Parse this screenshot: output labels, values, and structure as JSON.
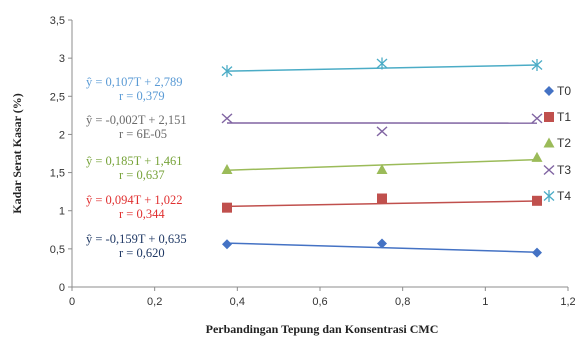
{
  "chart_data": {
    "type": "scatter",
    "title": "",
    "xlabel": "Perbandingan Tepung dan Konsentrasi CMC",
    "ylabel": "Kadar Serat Kasar (%)",
    "xlim": [
      0,
      1.2
    ],
    "ylim": [
      0,
      3.5
    ],
    "x_ticks": [
      "0",
      "0,2",
      "0,4",
      "0,6",
      "0,8",
      "1",
      "1,2"
    ],
    "y_ticks": [
      "0",
      "0,5",
      "1",
      "1,5",
      "2",
      "2,5",
      "3",
      "3,5"
    ],
    "grid": false,
    "legend_position": "right",
    "series": [
      {
        "name": "T0",
        "marker": "diamond",
        "color": "#4472C4",
        "x": [
          0.375,
          0.75,
          1.125
        ],
        "y": [
          0.56,
          0.57,
          0.45
        ],
        "trend": {
          "slope": -0.159,
          "intercept": 0.635
        },
        "equation": "ŷ = -0,159T + 0,635",
        "r_text": "r = 0,620",
        "label_color": "#1F3864"
      },
      {
        "name": "T1",
        "marker": "square",
        "color": "#C0504D",
        "x": [
          0.375,
          0.75,
          1.125
        ],
        "y": [
          1.04,
          1.16,
          1.13
        ],
        "trend": {
          "slope": 0.094,
          "intercept": 1.022
        },
        "equation": "ŷ = 0,094T + 1,022",
        "r_text": "r = 0,344",
        "label_color": "#E03030"
      },
      {
        "name": "T2",
        "marker": "triangle",
        "color": "#9BBB59",
        "x": [
          0.375,
          0.75,
          1.125
        ],
        "y": [
          1.54,
          1.54,
          1.7
        ],
        "trend": {
          "slope": 0.185,
          "intercept": 1.461
        },
        "equation": "ŷ = 0,185T + 1,461",
        "r_text": "r = 0,637",
        "label_color": "#77A33A"
      },
      {
        "name": "T3",
        "marker": "x",
        "color": "#8064A2",
        "x": [
          0.375,
          0.75,
          1.125
        ],
        "y": [
          2.21,
          2.04,
          2.21
        ],
        "trend": {
          "slope": -0.002,
          "intercept": 2.151
        },
        "equation": "ŷ = -0,002T + 2,151",
        "r_text": "r = 6E-05",
        "label_color": "#6B6B6B"
      },
      {
        "name": "T4",
        "marker": "star",
        "color": "#4BACC6",
        "x": [
          0.375,
          0.75,
          1.125
        ],
        "y": [
          2.83,
          2.93,
          2.91
        ],
        "trend": {
          "slope": 0.107,
          "intercept": 2.789
        },
        "equation": "ŷ = 0,107T + 2,789",
        "r_text": "r = 0,379",
        "label_color": "#5B9BD5"
      }
    ]
  }
}
